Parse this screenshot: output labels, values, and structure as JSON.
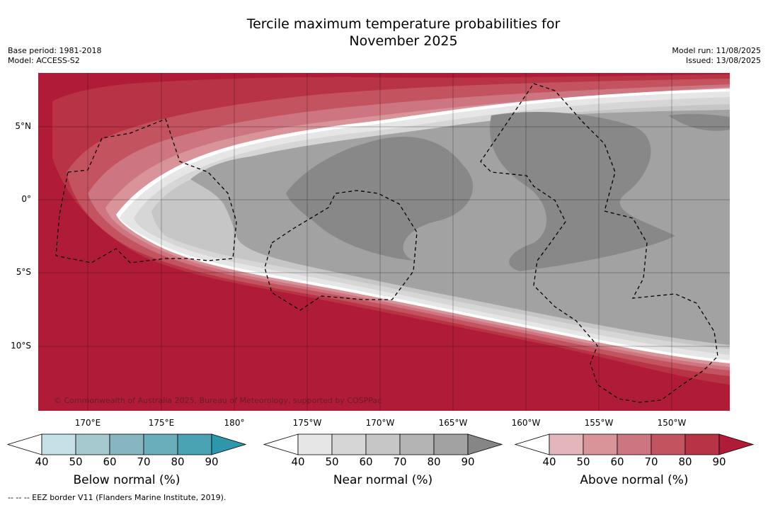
{
  "title_line1": "Tercile maximum temperature probabilities for",
  "title_line2": "November 2025",
  "base_period": "Base period: 1981-2018",
  "model": "Model: ACCESS-S2",
  "model_run": "Model run: 11/08/2025",
  "issued": "Issued: 13/08/2025",
  "lat_labels": [
    "5°N",
    "0°",
    "5°S",
    "10°S"
  ],
  "lon_labels": [
    "170°E",
    "175°E",
    "180°",
    "175°W",
    "170°W",
    "165°W",
    "160°W",
    "155°W",
    "150°W"
  ],
  "copyright": "© Commonwealth of Australia 2025, Bureau of Meteorology, supported by COSPPac",
  "colorbars": [
    {
      "title": "Below normal (%)",
      "ticks": [
        "40",
        "50",
        "60",
        "70",
        "80",
        "90"
      ],
      "colors": [
        "#ffffff",
        "#c6e0e7",
        "#a6c8cf",
        "#87b6c1",
        "#6aaebb",
        "#4aa3b2",
        "#2f97ab"
      ]
    },
    {
      "title": "Near normal (%)",
      "ticks": [
        "40",
        "50",
        "60",
        "70",
        "80",
        "90"
      ],
      "colors": [
        "#ffffff",
        "#e6e6e6",
        "#d6d6d6",
        "#c6c6c6",
        "#b4b4b4",
        "#a2a2a2",
        "#868686"
      ]
    },
    {
      "title": "Above normal (%)",
      "ticks": [
        "40",
        "50",
        "60",
        "70",
        "80",
        "90"
      ],
      "colors": [
        "#ffffff",
        "#e2b6bb",
        "#d89499",
        "#cd7580",
        "#c3535f",
        "#b83444",
        "#b01c38"
      ]
    }
  ],
  "footnote": "-- -- -- EEZ border V11 (Flanders Marine Institute, 2019)."
}
